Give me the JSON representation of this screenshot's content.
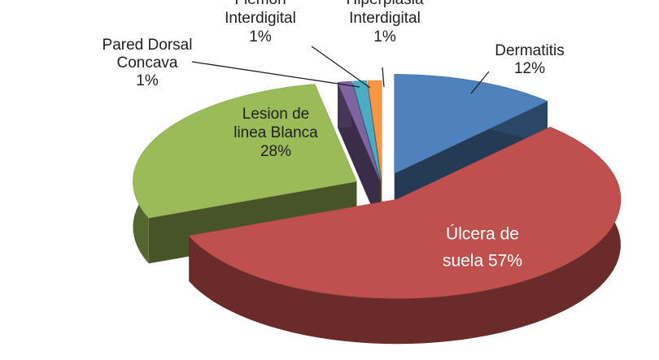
{
  "chart_data": {
    "type": "pie",
    "style": "3d-exploded",
    "slices": [
      {
        "name": "Dermatitis",
        "value": 12,
        "label_lines": [
          "Dermatitis",
          "12%"
        ],
        "color": "#4f81bd"
      },
      {
        "name": "Úlcera de suela",
        "value": 57,
        "label_lines": [
          "Úlcera de",
          "suela 57%"
        ],
        "color": "#c0504d"
      },
      {
        "name": "Lesion de linea Blanca",
        "value": 28,
        "label_lines": [
          "Lesion de",
          "linea Blanca",
          "28%"
        ],
        "color": "#9bbb59"
      },
      {
        "name": "Pared Dorsal Concava",
        "value": 1,
        "label_lines": [
          "Pared Dorsal",
          "Concava",
          "1%"
        ],
        "color": "#8064a2"
      },
      {
        "name": "Flemon Interdigital",
        "value": 1,
        "label_lines": [
          "Flemon",
          "Interdigital",
          "1%"
        ],
        "color": "#4bacc6"
      },
      {
        "name": "Hiperplasia Interdigital",
        "value": 1,
        "label_lines": [
          "Hiperplasia",
          "Interdigital",
          "1%"
        ],
        "color": "#f79646"
      }
    ],
    "title": "",
    "legend": "none",
    "data_labels": "outside with leader lines for small slices"
  }
}
